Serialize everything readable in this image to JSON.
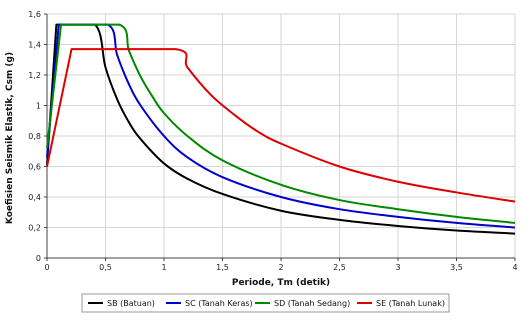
{
  "chart_data": {
    "type": "line",
    "xlabel": "Periode, Tm (detik)",
    "ylabel": "Koefisien Seismik Elastik, Csm (g)",
    "xlim": [
      0,
      4
    ],
    "ylim": [
      0,
      1.6
    ],
    "x_ticks": [
      "0",
      "0,5",
      "1",
      "1,5",
      "2",
      "2,5",
      "3",
      "3,5",
      "4"
    ],
    "y_ticks": [
      "0",
      "0,2",
      "0,4",
      "0,6",
      "0,8",
      "1",
      "1,2",
      "1,4",
      "1,6"
    ],
    "grid": true,
    "legend_position": "bottom",
    "series": [
      {
        "name": "SB (Batuan)",
        "color": "#000000",
        "x": [
          0,
          0.08,
          0.41,
          0.5,
          0.6,
          0.7,
          0.8,
          1.0,
          1.2,
          1.5,
          2.0,
          2.5,
          3.0,
          3.5,
          4.0
        ],
        "y": [
          0.61,
          1.53,
          1.53,
          1.25,
          1.04,
          0.89,
          0.78,
          0.62,
          0.52,
          0.42,
          0.31,
          0.25,
          0.21,
          0.18,
          0.16
        ]
      },
      {
        "name": "SC (Tanah Keras)",
        "color": "#0000cc",
        "x": [
          0,
          0.1,
          0.52,
          0.6,
          0.7,
          0.8,
          1.0,
          1.2,
          1.5,
          2.0,
          2.5,
          3.0,
          3.5,
          4.0
        ],
        "y": [
          0.66,
          1.53,
          1.53,
          1.33,
          1.14,
          1.0,
          0.8,
          0.66,
          0.53,
          0.4,
          0.32,
          0.27,
          0.23,
          0.2
        ]
      },
      {
        "name": "SD (Tanah Sedang)",
        "color": "#008800",
        "x": [
          0,
          0.12,
          0.62,
          0.7,
          0.8,
          0.9,
          1.0,
          1.2,
          1.5,
          2.0,
          2.5,
          3.0,
          3.5,
          4.0
        ],
        "y": [
          0.72,
          1.53,
          1.53,
          1.36,
          1.19,
          1.06,
          0.95,
          0.8,
          0.64,
          0.48,
          0.38,
          0.32,
          0.27,
          0.23
        ]
      },
      {
        "name": "SE (Tanah Lunak)",
        "color": "#dd0000",
        "x": [
          0,
          0.21,
          1.1,
          1.2,
          1.4,
          1.6,
          1.8,
          2.0,
          2.5,
          3.0,
          3.5,
          4.0
        ],
        "y": [
          0.6,
          1.37,
          1.37,
          1.25,
          1.07,
          0.94,
          0.83,
          0.75,
          0.6,
          0.5,
          0.43,
          0.37
        ]
      }
    ]
  }
}
